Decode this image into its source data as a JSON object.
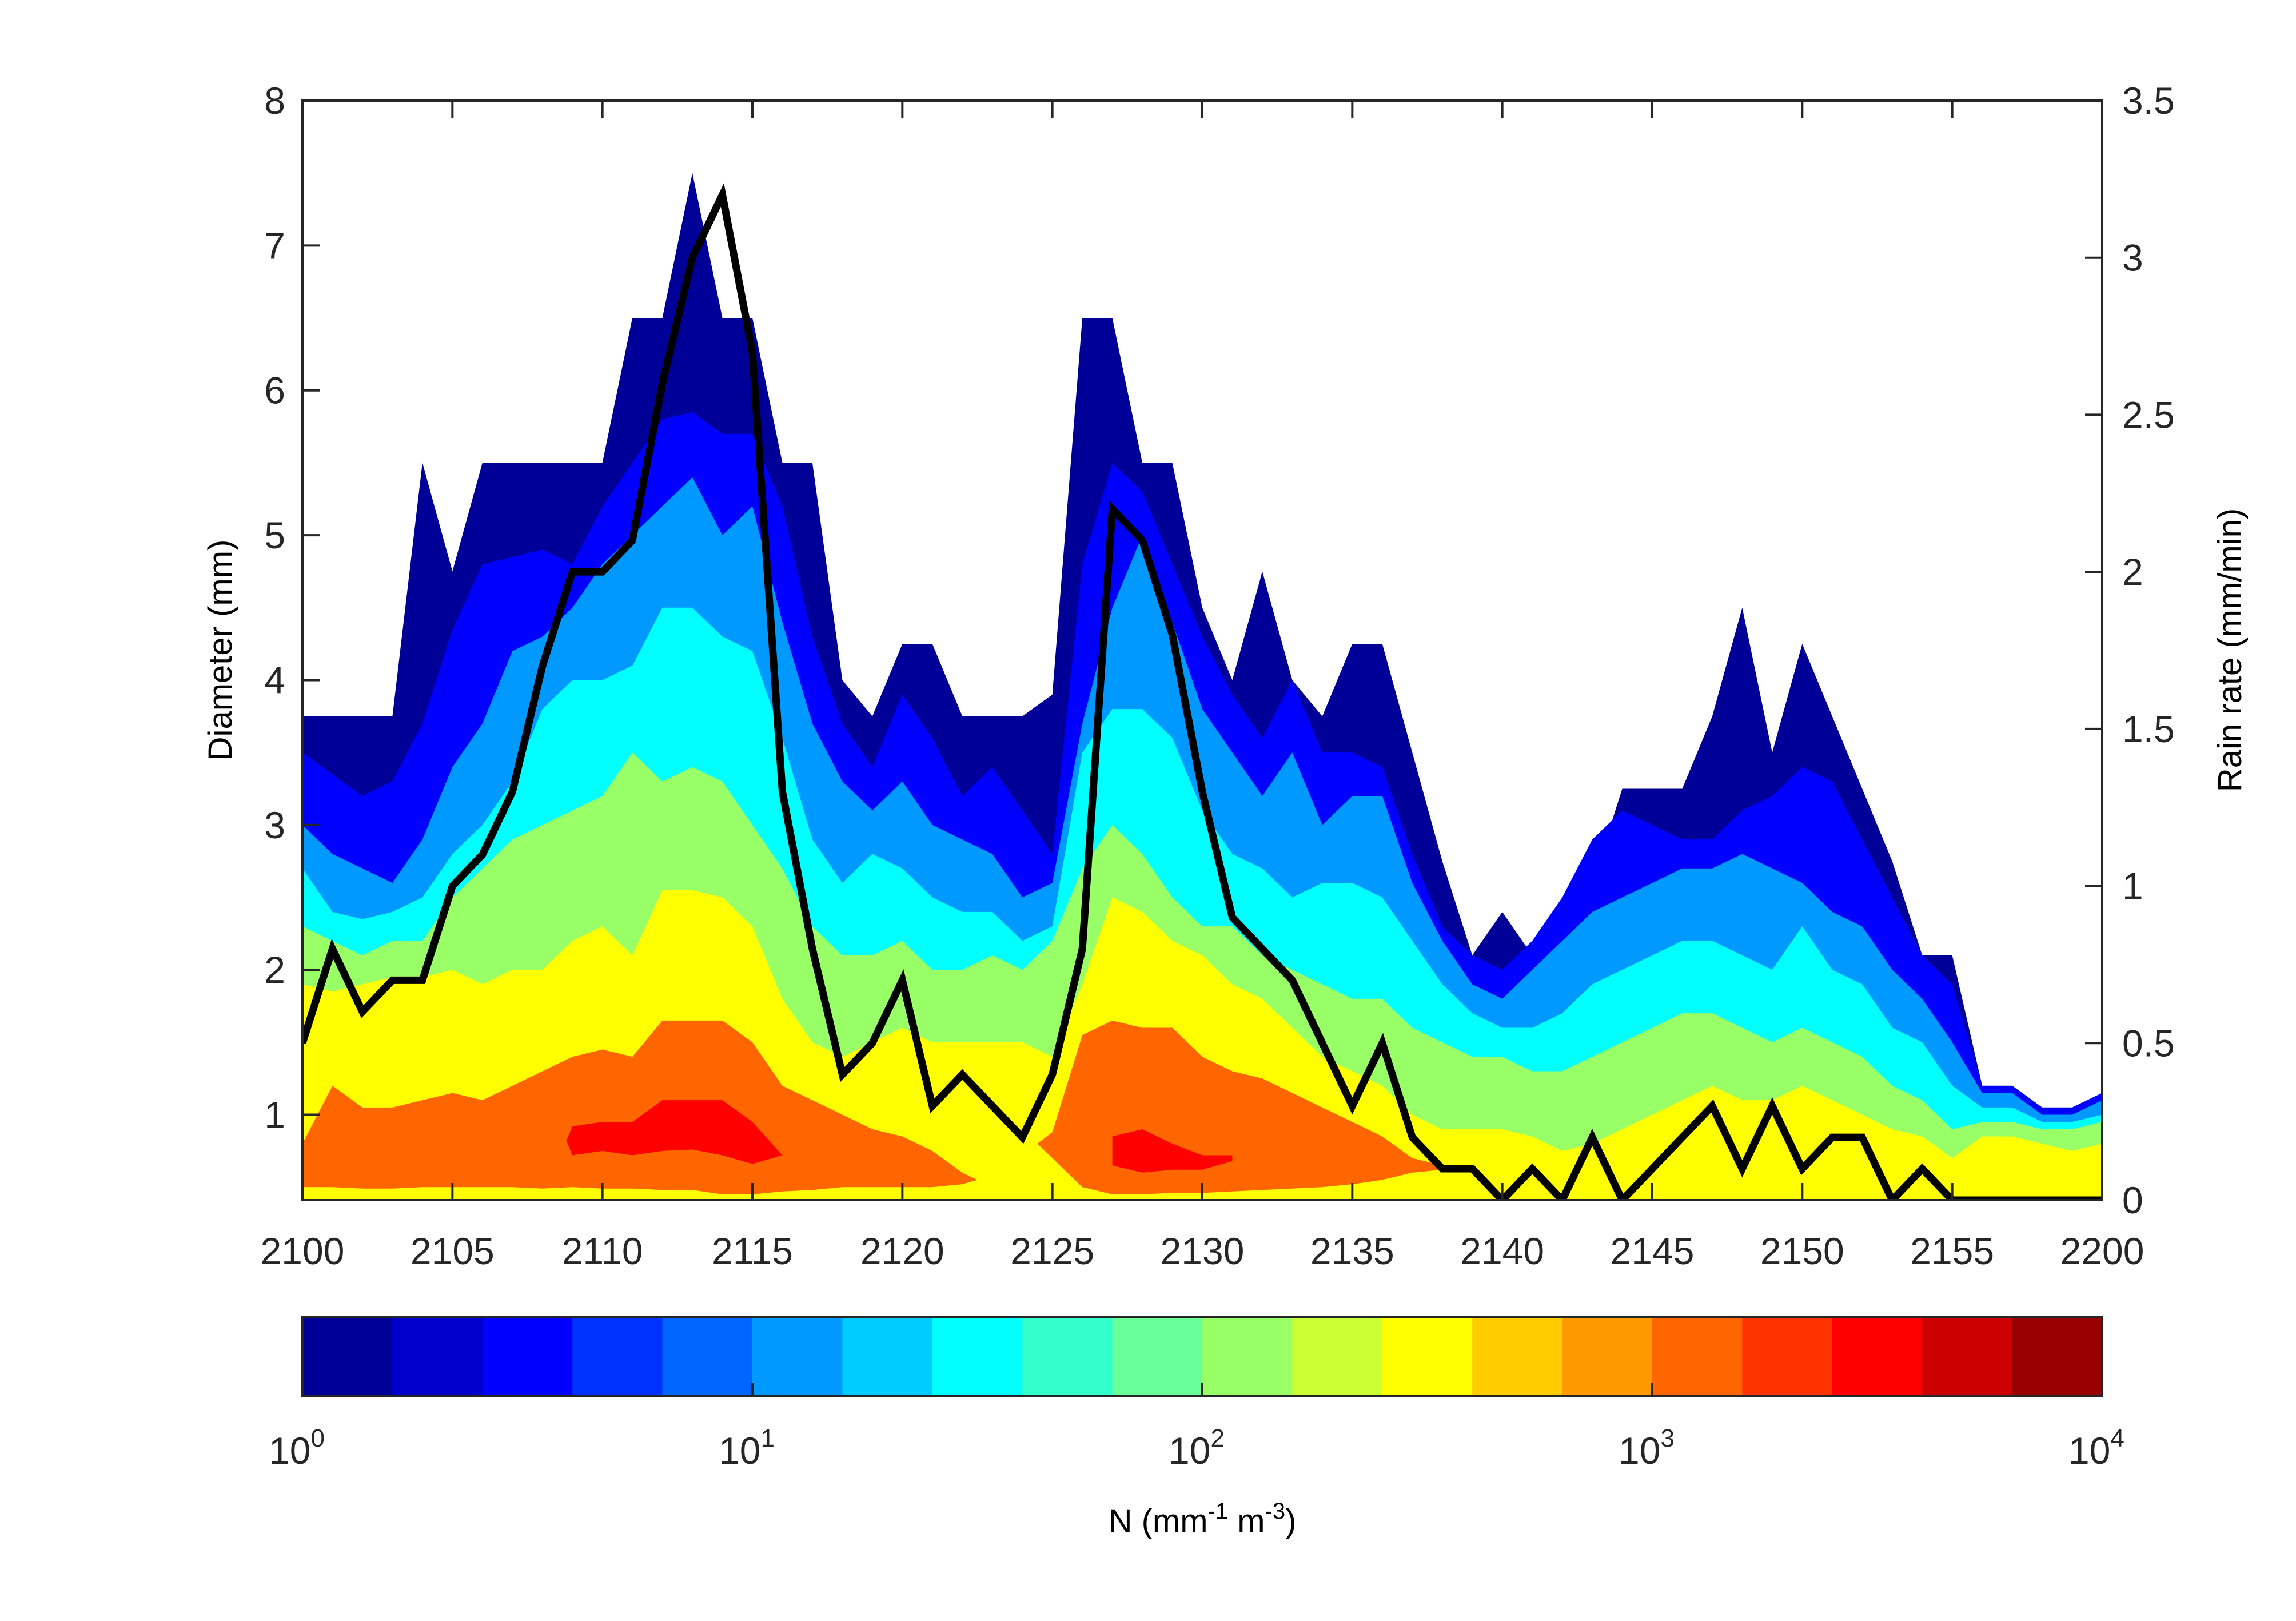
{
  "chart_data": {
    "type": "contourf+line",
    "x_start_label": "2100",
    "x_step_minutes": 1,
    "x_tick_labels": [
      "2100",
      "2105",
      "2110",
      "2115",
      "2120",
      "2125",
      "2130",
      "2135",
      "2140",
      "2145",
      "2150",
      "2155",
      "2200"
    ],
    "xlim_minutes": [
      0,
      60
    ],
    "left_axis": {
      "label": "Diameter (mm)",
      "ylim": [
        0.41,
        8
      ],
      "ticks": [
        "1",
        "2",
        "3",
        "4",
        "5",
        "6",
        "7",
        "8"
      ]
    },
    "right_axis": {
      "label": "Rain rate (mm/min)",
      "ylim": [
        0,
        3.5
      ],
      "ticks": [
        "0",
        "0.5",
        "1",
        "1.5",
        "2",
        "2.5",
        "3",
        "3.5"
      ]
    },
    "rain_rate": {
      "name": "Rain rate",
      "color": "#000000",
      "values": [
        0.5,
        0.8,
        0.6,
        0.7,
        0.7,
        1.0,
        1.1,
        1.3,
        1.7,
        2.0,
        2.0,
        2.1,
        2.6,
        3.0,
        3.2,
        2.7,
        1.3,
        0.8,
        0.4,
        0.5,
        0.7,
        0.3,
        0.4,
        0.3,
        0.2,
        0.4,
        0.8,
        2.2,
        2.1,
        1.8,
        1.3,
        0.9,
        0.8,
        0.7,
        0.5,
        0.3,
        0.5,
        0.2,
        0.1,
        0.1,
        0,
        0.1,
        0,
        0.2,
        0,
        0.1,
        0.2,
        0.3,
        0.1,
        0.3,
        0.1,
        0.2,
        0.2,
        0,
        0.1,
        0,
        0,
        0,
        0,
        0,
        0
      ]
    },
    "contour_bands": [
      {
        "level_min": 1,
        "color": "#000099",
        "top_diameter": [
          3.75,
          3.75,
          3.75,
          3.75,
          5.5,
          4.75,
          5.5,
          5.5,
          5.5,
          5.5,
          5.5,
          6.5,
          6.5,
          7.5,
          6.5,
          6.5,
          5.5,
          5.5,
          4.0,
          3.75,
          4.25,
          4.25,
          3.75,
          3.75,
          3.75,
          3.9,
          6.5,
          6.5,
          5.5,
          5.5,
          4.5,
          4.0,
          4.75,
          4.0,
          3.75,
          4.25,
          4.25,
          3.5,
          2.75,
          2.1,
          2.4,
          2.1,
          2.3,
          2.6,
          3.25,
          3.25,
          3.25,
          3.75,
          4.5,
          3.5,
          4.25,
          3.75,
          3.25,
          2.75,
          2.1,
          2.1,
          1.2,
          1.2,
          1.05,
          1.05,
          1.15
        ]
      },
      {
        "level_min": 2.5,
        "color": "#0000ff",
        "top_diameter": [
          3.5,
          3.35,
          3.2,
          3.3,
          3.7,
          4.35,
          4.8,
          4.85,
          4.9,
          4.8,
          5.2,
          5.5,
          5.8,
          5.85,
          5.7,
          5.7,
          5.2,
          4.3,
          3.7,
          3.4,
          3.9,
          3.6,
          3.2,
          3.4,
          3.1,
          2.8,
          4.8,
          5.5,
          5.3,
          4.8,
          4.3,
          3.9,
          3.6,
          4.0,
          3.5,
          3.5,
          3.4,
          2.8,
          2.3,
          2.1,
          2.0,
          2.2,
          2.5,
          2.9,
          3.1,
          3.0,
          2.9,
          2.9,
          3.1,
          3.2,
          3.4,
          3.3,
          2.9,
          2.5,
          2.1,
          1.9,
          1.2,
          1.2,
          1.05,
          1.05,
          1.15
        ]
      },
      {
        "level_min": 10,
        "color": "#0099ff",
        "top_diameter": [
          3.0,
          2.8,
          2.7,
          2.6,
          2.9,
          3.4,
          3.7,
          4.2,
          4.3,
          4.5,
          4.8,
          5.0,
          5.2,
          5.4,
          5.0,
          5.2,
          4.4,
          3.7,
          3.3,
          3.1,
          3.3,
          3.0,
          2.9,
          2.8,
          2.5,
          2.6,
          3.7,
          4.5,
          5.0,
          4.4,
          3.8,
          3.5,
          3.2,
          3.5,
          3.0,
          3.2,
          3.2,
          2.6,
          2.2,
          1.9,
          1.8,
          2.0,
          2.2,
          2.4,
          2.5,
          2.6,
          2.7,
          2.7,
          2.8,
          2.7,
          2.6,
          2.4,
          2.3,
          2.0,
          1.8,
          1.5,
          1.15,
          1.15,
          1.0,
          1.0,
          1.1
        ]
      },
      {
        "level_min": 25,
        "color": "#00ffff",
        "top_diameter": [
          2.7,
          2.4,
          2.35,
          2.4,
          2.5,
          2.8,
          3.0,
          3.3,
          3.8,
          4.0,
          4.0,
          4.1,
          4.5,
          4.5,
          4.3,
          4.2,
          3.6,
          2.9,
          2.6,
          2.8,
          2.7,
          2.5,
          2.4,
          2.4,
          2.2,
          2.3,
          3.5,
          3.8,
          3.8,
          3.6,
          3.1,
          2.8,
          2.7,
          2.5,
          2.6,
          2.6,
          2.5,
          2.2,
          1.9,
          1.7,
          1.6,
          1.6,
          1.7,
          1.9,
          2.0,
          2.1,
          2.2,
          2.2,
          2.1,
          2.0,
          2.3,
          2.0,
          1.9,
          1.6,
          1.5,
          1.2,
          1.05,
          1.05,
          0.95,
          0.95,
          1.0
        ]
      },
      {
        "level_min": 100,
        "color": "#99ff66",
        "top_diameter": [
          2.3,
          2.2,
          2.1,
          2.2,
          2.2,
          2.5,
          2.7,
          2.9,
          3.0,
          3.1,
          3.2,
          3.5,
          3.3,
          3.4,
          3.3,
          3.0,
          2.7,
          2.3,
          2.1,
          2.1,
          2.2,
          2.0,
          2.0,
          2.1,
          2.0,
          2.2,
          2.7,
          3.0,
          2.8,
          2.5,
          2.3,
          2.3,
          2.1,
          2.0,
          1.9,
          1.8,
          1.8,
          1.6,
          1.5,
          1.4,
          1.4,
          1.3,
          1.3,
          1.4,
          1.5,
          1.6,
          1.7,
          1.7,
          1.6,
          1.5,
          1.6,
          1.5,
          1.4,
          1.2,
          1.1,
          0.9,
          0.95,
          0.95,
          0.9,
          0.9,
          0.95
        ]
      },
      {
        "level_min": 250,
        "color": "#ffff00",
        "top_diameter": [
          1.9,
          1.85,
          1.9,
          1.95,
          1.95,
          2.0,
          1.9,
          2.0,
          2.0,
          2.2,
          2.3,
          2.1,
          2.55,
          2.55,
          2.5,
          2.3,
          1.8,
          1.5,
          1.4,
          1.5,
          1.6,
          1.5,
          1.5,
          1.5,
          1.5,
          1.4,
          1.9,
          2.5,
          2.4,
          2.2,
          2.1,
          1.9,
          1.8,
          1.6,
          1.4,
          1.3,
          1.2,
          1.0,
          0.9,
          0.9,
          0.9,
          0.85,
          0.75,
          0.8,
          0.9,
          1.0,
          1.1,
          1.2,
          1.1,
          1.1,
          1.2,
          1.1,
          1.0,
          0.9,
          0.85,
          0.7,
          0.85,
          0.85,
          0.8,
          0.75,
          0.8
        ]
      }
    ],
    "contour_patches": [
      {
        "level_min": 1000,
        "color": "#ff6600",
        "points": [
          [
            0,
            0.8,
            0.5
          ],
          [
            1,
            1.2,
            0.5
          ],
          [
            2,
            1.05,
            0.49
          ],
          [
            3,
            1.05,
            0.49
          ],
          [
            4,
            1.1,
            0.5
          ],
          [
            5,
            1.15,
            0.5
          ],
          [
            6,
            1.1,
            0.5
          ],
          [
            7,
            1.2,
            0.5
          ],
          [
            8,
            1.3,
            0.49
          ],
          [
            9,
            1.4,
            0.5
          ],
          [
            10,
            1.45,
            0.49
          ],
          [
            11,
            1.4,
            0.49
          ],
          [
            12,
            1.65,
            0.48
          ],
          [
            13,
            1.65,
            0.48
          ],
          [
            14,
            1.65,
            0.45
          ],
          [
            15,
            1.5,
            0.45
          ],
          [
            16,
            1.2,
            0.47
          ],
          [
            17,
            1.1,
            0.48
          ],
          [
            18,
            1.0,
            0.5
          ],
          [
            19,
            0.9,
            0.5
          ],
          [
            20,
            0.85,
            0.5
          ],
          [
            21,
            0.75,
            0.5
          ],
          [
            22,
            0.6,
            0.52
          ],
          [
            22.5,
            0.55,
            0.55
          ]
        ]
      },
      {
        "level_min": 1000,
        "color": "#ff6600",
        "points": [
          [
            24.5,
            0.8,
            0.8
          ],
          [
            25,
            0.88,
            0.7
          ],
          [
            26,
            1.55,
            0.5
          ],
          [
            27,
            1.65,
            0.45
          ],
          [
            28,
            1.6,
            0.45
          ],
          [
            29,
            1.6,
            0.46
          ],
          [
            30,
            1.4,
            0.46
          ],
          [
            31,
            1.3,
            0.47
          ],
          [
            32,
            1.25,
            0.48
          ],
          [
            33,
            1.15,
            0.49
          ],
          [
            34,
            1.05,
            0.5
          ],
          [
            35,
            0.95,
            0.52
          ],
          [
            36,
            0.85,
            0.55
          ],
          [
            37,
            0.7,
            0.6
          ],
          [
            38,
            0.65,
            0.62
          ]
        ]
      },
      {
        "level_min": 2500,
        "color": "#ff0000",
        "points": [
          [
            8.8,
            0.82,
            0.82
          ],
          [
            9,
            0.92,
            0.72
          ],
          [
            10,
            0.95,
            0.75
          ],
          [
            11,
            0.95,
            0.72
          ],
          [
            12,
            1.1,
            0.75
          ],
          [
            13,
            1.1,
            0.76
          ],
          [
            14,
            1.1,
            0.72
          ],
          [
            15,
            0.95,
            0.66
          ],
          [
            16,
            0.72,
            0.72
          ]
        ]
      },
      {
        "level_min": 2500,
        "color": "#ff0000",
        "points": [
          [
            27,
            0.85,
            0.65
          ],
          [
            28,
            0.9,
            0.6
          ],
          [
            29,
            0.8,
            0.62
          ],
          [
            30,
            0.72,
            0.62
          ],
          [
            31,
            0.72,
            0.68
          ]
        ]
      }
    ],
    "colorbar": {
      "label_parts": {
        "a": "N (mm",
        "b": "-1",
        "c": " m",
        "d": "-3",
        "e": ")"
      },
      "scale": "log",
      "range": [
        1,
        10000
      ],
      "tick_labels": [
        {
          "base": "10",
          "exp": "0"
        },
        {
          "base": "10",
          "exp": "1"
        },
        {
          "base": "10",
          "exp": "2"
        },
        {
          "base": "10",
          "exp": "3"
        },
        {
          "base": "10",
          "exp": "4"
        }
      ],
      "colors": [
        "#000099",
        "#0000cc",
        "#0000ff",
        "#0033ff",
        "#0066ff",
        "#0099ff",
        "#00ccff",
        "#00ffff",
        "#33ffcc",
        "#66ff99",
        "#99ff66",
        "#ccff33",
        "#ffff00",
        "#ffcc00",
        "#ff9900",
        "#ff6600",
        "#ff3300",
        "#ff0000",
        "#cc0000",
        "#990000"
      ]
    }
  }
}
